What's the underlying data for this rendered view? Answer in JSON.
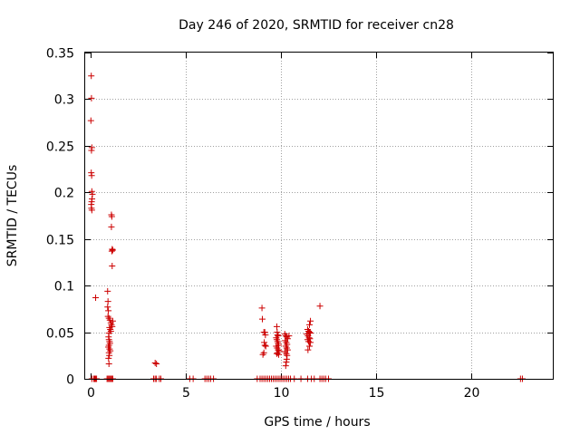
{
  "chart_data": {
    "type": "scatter",
    "title": "Day 246 of 2020, SRMTID for receiver cn28",
    "xlabel": "GPS time / hours",
    "ylabel": "SRMTID / TECUs",
    "xlim": [
      -0.3,
      24.3
    ],
    "ylim": [
      0,
      0.35
    ],
    "x_ticks": [
      0,
      5,
      10,
      15,
      20
    ],
    "x_tick_labels": [
      "0",
      "5",
      "10",
      "15",
      "20"
    ],
    "y_ticks": [
      0,
      0.05,
      0.1,
      0.15,
      0.2,
      0.25,
      0.3,
      0.35
    ],
    "y_tick_labels": [
      "0",
      "0.05",
      "0.1",
      "0.15",
      "0.2",
      "0.25",
      "0.3",
      "0.35"
    ],
    "grid": true,
    "marker": "+",
    "series": [
      {
        "name": "SRMTID",
        "color": "#cc0000",
        "points": [
          [
            0.02,
            0.325
          ],
          [
            0.03,
            0.301
          ],
          [
            0.0,
            0.277
          ],
          [
            0.05,
            0.248
          ],
          [
            0.03,
            0.245
          ],
          [
            0.02,
            0.221
          ],
          [
            0.04,
            0.218
          ],
          [
            0.05,
            0.201
          ],
          [
            0.08,
            0.198
          ],
          [
            0.06,
            0.193
          ],
          [
            0.04,
            0.19
          ],
          [
            0.02,
            0.187
          ],
          [
            0.03,
            0.183
          ],
          [
            0.05,
            0.181
          ],
          [
            0.25,
            0.087
          ],
          [
            0.05,
            0.0
          ],
          [
            0.15,
            0.0
          ],
          [
            0.2,
            0.0
          ],
          [
            0.25,
            0.0
          ],
          [
            0.3,
            0.0
          ],
          [
            1.08,
            0.176
          ],
          [
            1.1,
            0.174
          ],
          [
            1.08,
            0.163
          ],
          [
            1.12,
            0.139
          ],
          [
            1.15,
            0.138
          ],
          [
            1.1,
            0.137
          ],
          [
            1.12,
            0.121
          ],
          [
            0.88,
            0.094
          ],
          [
            0.9,
            0.083
          ],
          [
            0.88,
            0.077
          ],
          [
            0.92,
            0.073
          ],
          [
            0.9,
            0.067
          ],
          [
            0.95,
            0.065
          ],
          [
            1.0,
            0.063
          ],
          [
            1.05,
            0.06
          ],
          [
            1.08,
            0.058
          ],
          [
            1.12,
            0.056
          ],
          [
            1.15,
            0.062
          ],
          [
            0.98,
            0.055
          ],
          [
            1.02,
            0.053
          ],
          [
            1.05,
            0.051
          ],
          [
            0.95,
            0.049
          ],
          [
            0.93,
            0.045
          ],
          [
            0.95,
            0.042
          ],
          [
            0.98,
            0.04
          ],
          [
            1.0,
            0.038
          ],
          [
            0.95,
            0.036
          ],
          [
            0.92,
            0.034
          ],
          [
            0.98,
            0.032
          ],
          [
            1.02,
            0.03
          ],
          [
            0.95,
            0.028
          ],
          [
            0.97,
            0.025
          ],
          [
            0.93,
            0.022
          ],
          [
            0.95,
            0.016
          ],
          [
            0.85,
            0.0
          ],
          [
            0.9,
            0.0
          ],
          [
            0.95,
            0.0
          ],
          [
            1.0,
            0.0
          ],
          [
            1.05,
            0.0
          ],
          [
            1.1,
            0.0
          ],
          [
            1.15,
            0.0
          ],
          [
            3.38,
            0.017
          ],
          [
            3.45,
            0.016
          ],
          [
            3.3,
            0.0
          ],
          [
            3.38,
            0.0
          ],
          [
            3.45,
            0.0
          ],
          [
            3.6,
            0.0
          ],
          [
            3.68,
            0.0
          ],
          [
            5.2,
            0.0
          ],
          [
            5.38,
            0.0
          ],
          [
            6.0,
            0.0
          ],
          [
            6.1,
            0.0
          ],
          [
            6.2,
            0.0
          ],
          [
            6.3,
            0.0
          ],
          [
            6.45,
            0.0
          ],
          [
            8.75,
            0.0
          ],
          [
            8.9,
            0.0
          ],
          [
            9.0,
            0.0
          ],
          [
            9.1,
            0.0
          ],
          [
            9.2,
            0.0
          ],
          [
            9.3,
            0.0
          ],
          [
            9.4,
            0.0
          ],
          [
            9.5,
            0.0
          ],
          [
            9.6,
            0.0
          ],
          [
            9.7,
            0.0
          ],
          [
            9.8,
            0.0
          ],
          [
            9.9,
            0.0
          ],
          [
            10.0,
            0.0
          ],
          [
            10.1,
            0.0
          ],
          [
            10.2,
            0.0
          ],
          [
            10.3,
            0.0
          ],
          [
            10.4,
            0.0
          ],
          [
            10.5,
            0.0
          ],
          [
            10.7,
            0.0
          ],
          [
            9.0,
            0.076
          ],
          [
            9.02,
            0.064
          ],
          [
            9.1,
            0.05
          ],
          [
            9.15,
            0.05
          ],
          [
            9.18,
            0.047
          ],
          [
            9.12,
            0.039
          ],
          [
            9.15,
            0.036
          ],
          [
            9.2,
            0.035
          ],
          [
            9.1,
            0.028
          ],
          [
            9.05,
            0.026
          ],
          [
            9.78,
            0.056
          ],
          [
            9.8,
            0.05
          ],
          [
            9.82,
            0.047
          ],
          [
            9.85,
            0.046
          ],
          [
            9.75,
            0.044
          ],
          [
            9.78,
            0.042
          ],
          [
            9.82,
            0.04
          ],
          [
            9.85,
            0.038
          ],
          [
            9.88,
            0.036
          ],
          [
            9.75,
            0.035
          ],
          [
            9.8,
            0.033
          ],
          [
            9.85,
            0.031
          ],
          [
            9.9,
            0.03
          ],
          [
            9.82,
            0.028
          ],
          [
            9.78,
            0.027
          ],
          [
            9.88,
            0.026
          ],
          [
            10.2,
            0.048
          ],
          [
            10.25,
            0.046
          ],
          [
            10.3,
            0.045
          ],
          [
            10.35,
            0.043
          ],
          [
            10.42,
            0.046
          ],
          [
            10.22,
            0.041
          ],
          [
            10.28,
            0.039
          ],
          [
            10.32,
            0.037
          ],
          [
            10.25,
            0.035
          ],
          [
            10.3,
            0.033
          ],
          [
            10.35,
            0.031
          ],
          [
            10.2,
            0.029
          ],
          [
            10.28,
            0.027
          ],
          [
            10.32,
            0.025
          ],
          [
            10.3,
            0.021
          ],
          [
            10.28,
            0.018
          ],
          [
            10.25,
            0.014
          ],
          [
            11.05,
            0.0
          ],
          [
            11.4,
            0.0
          ],
          [
            11.6,
            0.0
          ],
          [
            11.75,
            0.0
          ],
          [
            12.05,
            0.0
          ],
          [
            12.15,
            0.0
          ],
          [
            12.25,
            0.0
          ],
          [
            12.35,
            0.0
          ],
          [
            12.5,
            0.0
          ],
          [
            11.55,
            0.062
          ],
          [
            11.5,
            0.058
          ],
          [
            11.4,
            0.053
          ],
          [
            11.45,
            0.051
          ],
          [
            11.5,
            0.05
          ],
          [
            11.55,
            0.049
          ],
          [
            11.35,
            0.048
          ],
          [
            11.42,
            0.046
          ],
          [
            11.48,
            0.044
          ],
          [
            11.52,
            0.043
          ],
          [
            11.4,
            0.042
          ],
          [
            11.45,
            0.04
          ],
          [
            11.55,
            0.039
          ],
          [
            11.5,
            0.035
          ],
          [
            11.42,
            0.031
          ],
          [
            12.05,
            0.078
          ],
          [
            22.6,
            0.0
          ],
          [
            22.7,
            0.0
          ]
        ]
      }
    ]
  }
}
